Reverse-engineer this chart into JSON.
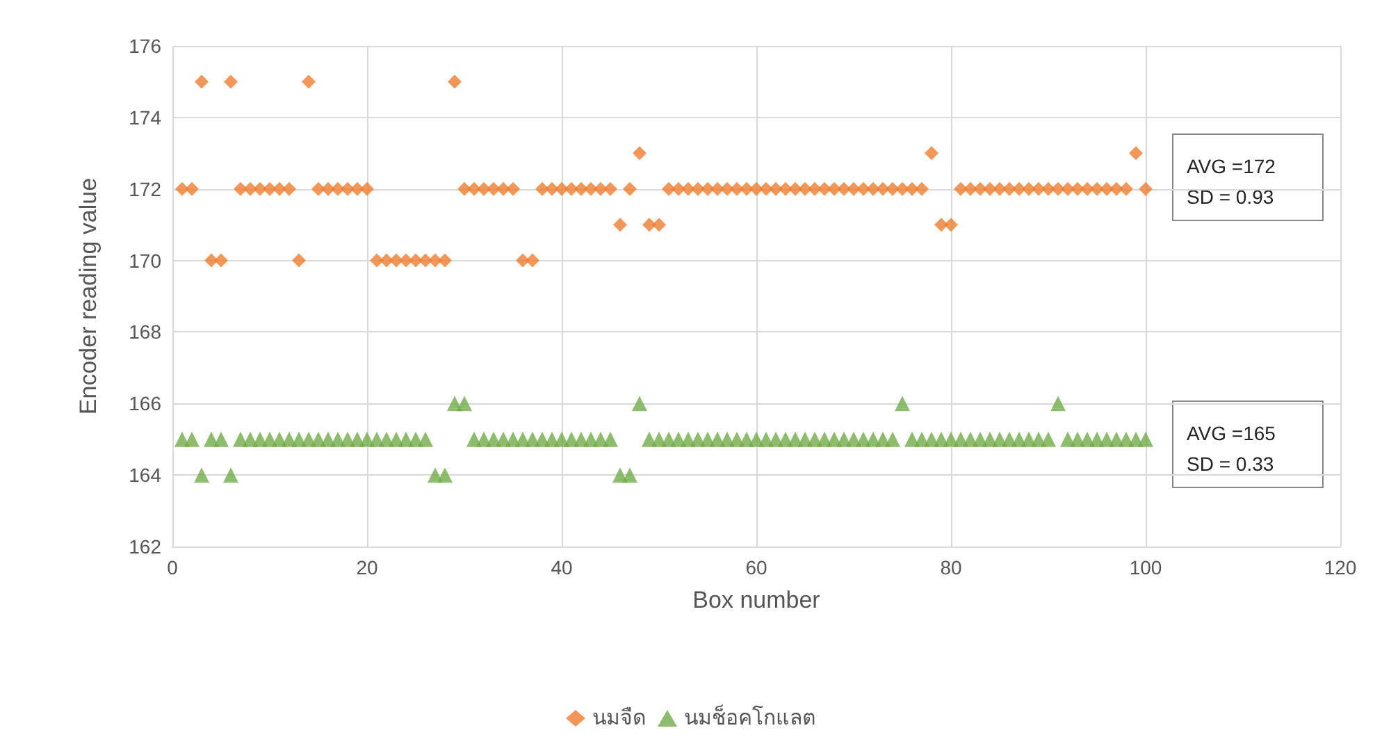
{
  "chart_data": {
    "type": "scatter",
    "xlabel": "Box number",
    "ylabel": "Encoder reading value",
    "x": [
      1,
      2,
      3,
      4,
      5,
      6,
      7,
      8,
      9,
      10,
      11,
      12,
      13,
      14,
      15,
      16,
      17,
      18,
      19,
      20,
      21,
      22,
      23,
      24,
      25,
      26,
      27,
      28,
      29,
      30,
      31,
      32,
      33,
      34,
      35,
      36,
      37,
      38,
      39,
      40,
      41,
      42,
      43,
      44,
      45,
      46,
      47,
      48,
      49,
      50,
      51,
      52,
      53,
      54,
      55,
      56,
      57,
      58,
      59,
      60,
      61,
      62,
      63,
      64,
      65,
      66,
      67,
      68,
      69,
      70,
      71,
      72,
      73,
      74,
      75,
      76,
      77,
      78,
      79,
      80,
      81,
      82,
      83,
      84,
      85,
      86,
      87,
      88,
      89,
      90,
      91,
      92,
      93,
      94,
      95,
      96,
      97,
      98,
      99,
      100
    ],
    "series": [
      {
        "name": "นมจืด",
        "color": "#ed7d31",
        "marker": "diamond",
        "values": [
          172,
          172,
          175,
          170,
          170,
          175,
          172,
          172,
          172,
          172,
          172,
          172,
          170,
          175,
          172,
          172,
          172,
          172,
          172,
          172,
          170,
          170,
          170,
          170,
          170,
          170,
          170,
          170,
          175,
          172,
          172,
          172,
          172,
          172,
          172,
          170,
          170,
          172,
          172,
          172,
          172,
          172,
          172,
          172,
          172,
          171,
          172,
          173,
          171,
          171,
          172,
          172,
          172,
          172,
          172,
          172,
          172,
          172,
          172,
          172,
          172,
          172,
          172,
          172,
          172,
          172,
          172,
          172,
          172,
          172,
          172,
          172,
          172,
          172,
          172,
          172,
          172,
          173,
          171,
          171,
          172,
          172,
          172,
          172,
          172,
          172,
          172,
          172,
          172,
          172,
          172,
          172,
          172,
          172,
          172,
          172,
          172,
          172,
          173,
          172
        ]
      },
      {
        "name": "นมช็อคโกแลต",
        "color": "#70ad47",
        "marker": "triangle",
        "values": [
          165,
          165,
          164,
          165,
          165,
          164,
          165,
          165,
          165,
          165,
          165,
          165,
          165,
          165,
          165,
          165,
          165,
          165,
          165,
          165,
          165,
          165,
          165,
          165,
          165,
          165,
          164,
          164,
          166,
          166,
          165,
          165,
          165,
          165,
          165,
          165,
          165,
          165,
          165,
          165,
          165,
          165,
          165,
          165,
          165,
          164,
          164,
          166,
          165,
          165,
          165,
          165,
          165,
          165,
          165,
          165,
          165,
          165,
          165,
          165,
          165,
          165,
          165,
          165,
          165,
          165,
          165,
          165,
          165,
          165,
          165,
          165,
          165,
          165,
          166,
          165,
          165,
          165,
          165,
          165,
          165,
          165,
          165,
          165,
          165,
          165,
          165,
          165,
          165,
          165,
          166,
          165,
          165,
          165,
          165,
          165,
          165,
          165,
          165,
          165
        ]
      }
    ],
    "xlim": [
      0,
      120
    ],
    "xticks": [
      0,
      20,
      40,
      60,
      80,
      100,
      120
    ],
    "ylim": [
      162,
      176
    ],
    "yticks": [
      162,
      164,
      166,
      168,
      170,
      172,
      174,
      176
    ],
    "grid": true,
    "legend": "bottom",
    "annotations": [
      "AVG =172\nSD = 0.93",
      "AVG =165\nSD = 0.33"
    ]
  }
}
